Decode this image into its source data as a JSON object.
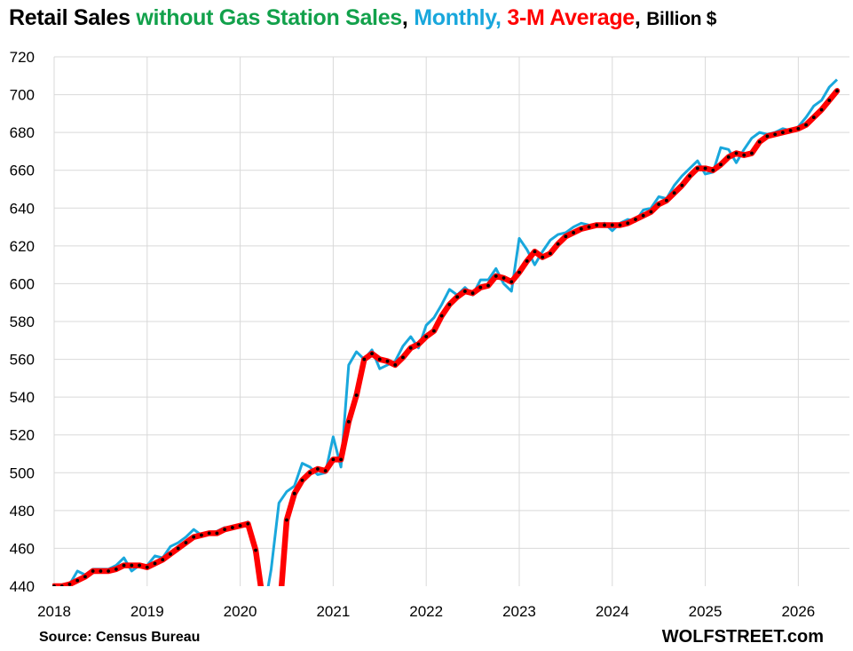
{
  "title": {
    "part1": "Retail Sales ",
    "part2": "without Gas Station Sales",
    "sep1": ", ",
    "part3": "Monthly,",
    "sep2": " ",
    "part4": "3-M Average",
    "sep3": ", ",
    "part5": "Billion $"
  },
  "colors": {
    "title_green": "#12a14b",
    "monthly": "#19a7dc",
    "average": "#ff0000",
    "average_dots": "#000000",
    "grid": "#d9d9d9"
  },
  "source": "Source: Census Bureau",
  "brand": "WOLFSTREET.com",
  "chart_data": {
    "type": "line",
    "x_start": 2018.0,
    "x_step_months": 1,
    "xlim": [
      2018.0,
      2026.55
    ],
    "ylim": [
      440,
      720
    ],
    "yticks": [
      440,
      460,
      480,
      500,
      520,
      540,
      560,
      580,
      600,
      620,
      640,
      660,
      680,
      700,
      720
    ],
    "xticks": [
      "2018",
      "2019",
      "2020",
      "2021",
      "2022",
      "2023",
      "2024",
      "2025",
      "2026"
    ],
    "grid": true,
    "legend": "in title",
    "series": [
      {
        "name": "Monthly",
        "color": "#19a7dc",
        "values": [
          440,
          440,
          441,
          448,
          446,
          449,
          449,
          449,
          451,
          455,
          448,
          451,
          451,
          456,
          455,
          461,
          463,
          466,
          470,
          467,
          468,
          469,
          471,
          471,
          472,
          474,
          455,
          425,
          449,
          484,
          490,
          493,
          505,
          503,
          499,
          500,
          519,
          503,
          557,
          564,
          560,
          565,
          555,
          557,
          559,
          567,
          572,
          566,
          578,
          582,
          589,
          597,
          594,
          598,
          594,
          602,
          602,
          608,
          600,
          596,
          624,
          618,
          610,
          617,
          623,
          626,
          627,
          630,
          632,
          631,
          631,
          632,
          628,
          632,
          634,
          633,
          639,
          640,
          646,
          645,
          652,
          657,
          661,
          665,
          658,
          659,
          672,
          671,
          664,
          671,
          677,
          680,
          679,
          680,
          682,
          681,
          683,
          688,
          694,
          697,
          704,
          708
        ]
      },
      {
        "name": "3-M Average",
        "color": "#ff0000",
        "values": [
          440,
          440,
          441,
          443,
          445,
          448,
          448,
          448,
          449,
          451,
          451,
          451,
          450,
          452,
          454,
          457,
          460,
          463,
          466,
          467,
          468,
          468,
          470,
          471,
          472,
          473,
          459,
          430,
          420,
          422,
          475,
          489,
          496,
          500,
          502,
          501,
          507,
          507,
          527,
          541,
          560,
          563,
          560,
          559,
          557,
          561,
          566,
          568,
          572,
          575,
          583,
          589,
          593,
          596,
          595,
          598,
          599,
          604,
          603,
          601,
          606,
          612,
          617,
          614,
          616,
          621,
          625,
          627,
          629,
          630,
          631,
          631,
          631,
          631,
          632,
          634,
          636,
          638,
          642,
          644,
          648,
          652,
          657,
          661,
          661,
          660,
          663,
          667,
          669,
          668,
          669,
          675,
          678,
          679,
          680,
          681,
          682,
          684,
          688,
          692,
          697,
          702
        ]
      }
    ]
  }
}
